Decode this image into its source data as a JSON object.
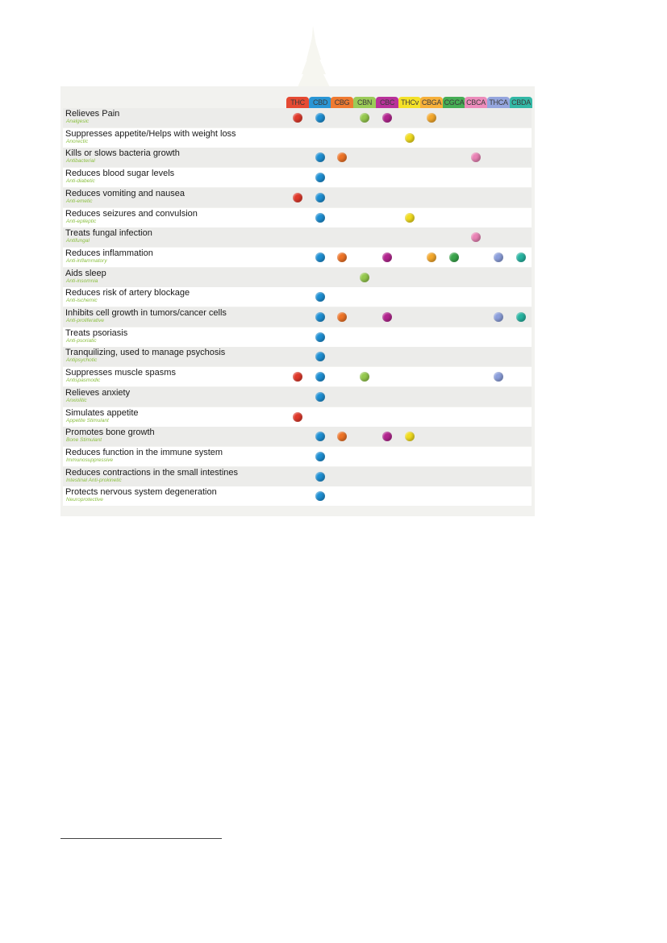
{
  "colors": {
    "THC": "#e0392b",
    "CBD": "#1d8fd3",
    "CBG": "#ee7326",
    "CBN": "#95c94d",
    "CBC": "#b3258f",
    "THCv": "#f1dc1e",
    "CBGA": "#f4a82b",
    "CGCA": "#3aa64b",
    "CBCA": "#ea82b5",
    "THCA": "#8c9fdc",
    "CBDA": "#26b3a0"
  },
  "header_fills": {
    "THC": "#e54a33",
    "CBD": "#2a96d5",
    "CBG": "#ef7a31",
    "CBN": "#9bcb58",
    "CBC": "#b9329a",
    "THCv": "#f4e128",
    "CBGA": "#f6b03a",
    "CGCA": "#46ad55",
    "CBCA": "#ec8cbb",
    "THCA": "#95a6de",
    "CBDA": "#33b8a6"
  },
  "columns": [
    "THC",
    "CBD",
    "CBG",
    "CBN",
    "CBC",
    "THCv",
    "CBGA",
    "CGCA",
    "CBCA",
    "THCA",
    "CBDA"
  ],
  "rows": [
    {
      "label": "Relieves Pain",
      "sub": "Analgesic",
      "marks": [
        "THC",
        "CBD",
        "CBN",
        "CBC",
        "CBGA"
      ]
    },
    {
      "label": "Suppresses appetite/Helps with weight loss",
      "sub": "Anorectic",
      "marks": [
        "THCv"
      ]
    },
    {
      "label": "Kills or slows bacteria growth",
      "sub": "Antibacterial",
      "marks": [
        "CBD",
        "CBG",
        "CBCA"
      ]
    },
    {
      "label": "Reduces blood sugar levels",
      "sub": "Anti-diabetic",
      "marks": [
        "CBD"
      ]
    },
    {
      "label": "Reduces vomiting and nausea",
      "sub": "Anti-emetic",
      "marks": [
        "THC",
        "CBD"
      ]
    },
    {
      "label": "Reduces seizures and convulsion",
      "sub": "Anti-epileptic",
      "marks": [
        "CBD",
        "THCv"
      ]
    },
    {
      "label": "Treats fungal infection",
      "sub": "Antifungal",
      "marks": [
        "CBCA"
      ]
    },
    {
      "label": "Reduces inflammation",
      "sub": "Anti-inflammatory",
      "marks": [
        "CBD",
        "CBG",
        "CBC",
        "CBGA",
        "CGCA",
        "THCA",
        "CBDA"
      ]
    },
    {
      "label": "Aids sleep",
      "sub": "Anti-insomnia",
      "marks": [
        "CBN"
      ]
    },
    {
      "label": "Reduces risk of artery blockage",
      "sub": "Anti-ischemic",
      "marks": [
        "CBD"
      ]
    },
    {
      "label": "Inhibits cell growth in tumors/cancer cells",
      "sub": "Anti-proliferative",
      "marks": [
        "CBD",
        "CBG",
        "CBC",
        "THCA",
        "CBDA"
      ]
    },
    {
      "label": "Treats psoriasis",
      "sub": "Anti-psoriatic",
      "marks": [
        "CBD"
      ]
    },
    {
      "label": "Tranquilizing, used to manage psychosis",
      "sub": "Antipsychotic",
      "marks": [
        "CBD"
      ]
    },
    {
      "label": "Suppresses muscle spasms",
      "sub": "Antispasmodic",
      "marks": [
        "THC",
        "CBD",
        "CBN",
        "THCA"
      ]
    },
    {
      "label": "Relieves anxiety",
      "sub": "Anxiolitic",
      "marks": [
        "CBD"
      ]
    },
    {
      "label": "Simulates appetite",
      "sub": "Appetite Stimulant",
      "marks": [
        "THC"
      ]
    },
    {
      "label": "Promotes bone growth",
      "sub": "Bone Stimulant",
      "marks": [
        "CBD",
        "CBG",
        "CBC",
        "THCv"
      ]
    },
    {
      "label": "Reduces function in the immune system",
      "sub": "Immunosuppressive",
      "marks": [
        "CBD"
      ]
    },
    {
      "label": "Reduces contractions in the small intestines",
      "sub": "Intestinal Anti-prokinetic",
      "marks": [
        "CBD"
      ]
    },
    {
      "label": "Protects nervous system degeneration",
      "sub": "Neuroprotective",
      "marks": [
        "CBD"
      ]
    }
  ]
}
